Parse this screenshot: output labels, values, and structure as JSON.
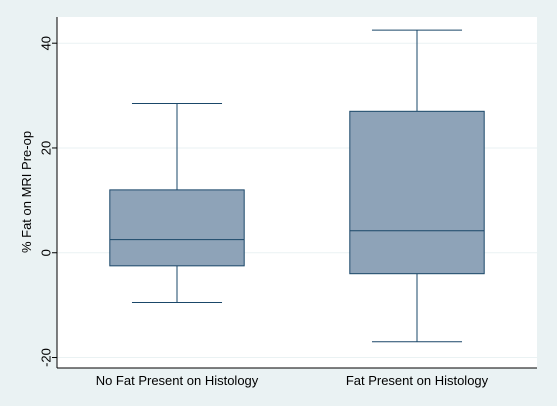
{
  "chart_data": {
    "type": "box",
    "title": "",
    "xlabel": "",
    "ylabel": "% Fat on MRI Pre-op",
    "ylim": [
      -22,
      45
    ],
    "yticks": [
      -20,
      0,
      20,
      40
    ],
    "grid": true,
    "categories": [
      "No Fat Present on Histology",
      "Fat Present on Histology"
    ],
    "boxes": [
      {
        "whisker_low": -9.5,
        "q1": -2.5,
        "median": 2.5,
        "q3": 12.0,
        "whisker_high": 28.5
      },
      {
        "whisker_low": -17.0,
        "q1": -4.0,
        "median": 4.2,
        "q3": 27.0,
        "whisker_high": 42.5
      }
    ]
  },
  "colors": {
    "outer_background": "#eaf2f3",
    "plot_background": "#ffffff",
    "box_fill": "#8ea3b8",
    "box_stroke": "#1a4769",
    "grid": "#eaf2f3",
    "axis": "#000000"
  }
}
